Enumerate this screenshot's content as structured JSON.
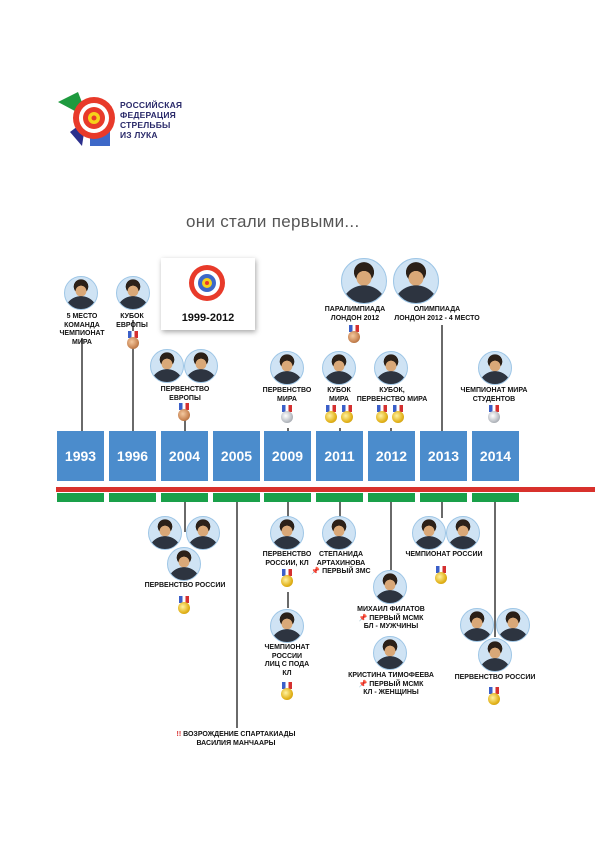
{
  "logo": {
    "line1": "РОССИЙСКАЯ",
    "line2": "ФЕДЕРАЦИЯ",
    "line3": "СТРЕЛЬБЫ",
    "line4": "ИЗ ЛУКА"
  },
  "headline": "они стали первыми...",
  "card_title": "1999-2012",
  "years": [
    "1993",
    "1996",
    "2004",
    "2005",
    "2009",
    "2011",
    "2012",
    "2013",
    "2014"
  ],
  "top": {
    "y1993": [
      "5 МЕСТО",
      "КОМАНДА",
      "ЧЕМПИОНАТ",
      "МИРА"
    ],
    "y1996": [
      "КУБОК",
      "ЕВРОПЫ"
    ],
    "y2004": [
      "ПЕРВЕНСТВО",
      "ЕВРОПЫ"
    ],
    "y2009": [
      "ПЕРВЕНСТВО",
      "МИРА"
    ],
    "y2011_para": [
      "ПАРАЛИМПИАДА",
      "ЛОНДОН 2012"
    ],
    "y2011_cup": [
      "КУБОК",
      "МИРА"
    ],
    "y2012": [
      "КУБОК,",
      "ПЕРВЕНСТВО МИРА"
    ],
    "y2012_olymp": [
      "ОЛИМПИАДА",
      "ЛОНДОН 2012 - 4 МЕСТО"
    ],
    "y2014": [
      "ЧЕМПИОНАТ МИРА",
      "СТУДЕНТОВ"
    ]
  },
  "bottom": {
    "y2004": "ПЕРВЕНСТВО РОССИИ",
    "y2005_mark": "!!",
    "y2005": [
      "ВОЗРОЖДЕНИЕ СПАРТАКИАДЫ",
      "ВАСИЛИЯ МАНЧААРЫ"
    ],
    "y2009a": [
      "ПЕРВЕНСТВО",
      "РОССИИ, КЛ"
    ],
    "y2009b": [
      "ЧЕМПИОНАТ",
      "РОССИИ",
      "ЛИЦ С ПОДА",
      "КЛ"
    ],
    "y2011": [
      "СТЕПАНИДА",
      "АРТАХИНОВА"
    ],
    "y2011_note": "ПЕРВЫЙ ЗМС",
    "y2012a": [
      "МИХАИЛ ФИЛАТОВ"
    ],
    "y2012a_note": "ПЕРВЫЙ МСМК",
    "y2012a_sub": "БЛ - МУЖЧИНЫ",
    "y2012b": [
      "КРИСТИНА ТИМОФЕЕВА"
    ],
    "y2012b_note": "ПЕРВЫЙ МСМК",
    "y2012b_sub": "КЛ - ЖЕНЩИНЫ",
    "y2013": "ЧЕМПИОНАТ РОССИИ",
    "y2014": "ПЕРВЕНСТВО РОССИИ"
  },
  "colors": {
    "year_box": "#4b8ccc",
    "green_bar": "#1aa04a",
    "red_line": "#d8312c"
  }
}
